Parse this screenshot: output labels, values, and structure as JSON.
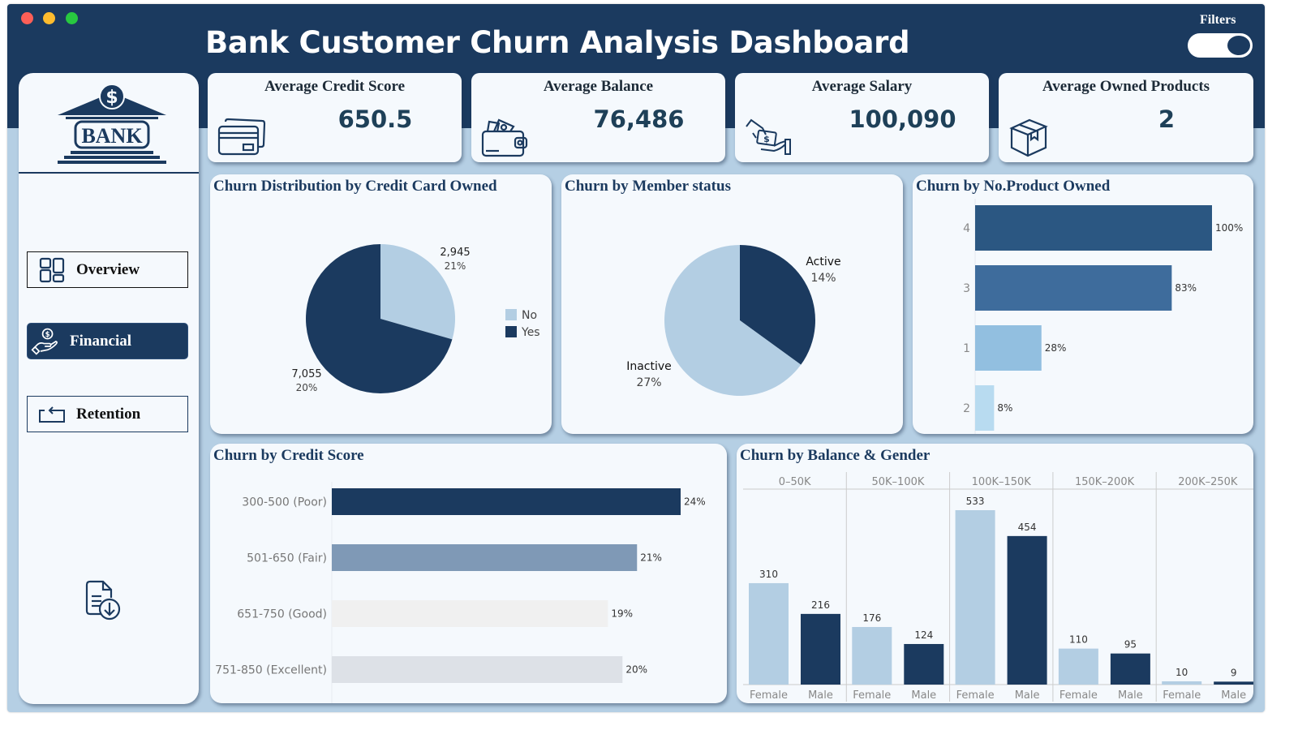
{
  "window": {
    "title": "Bank Customer Churn Analysis Dashboard",
    "filters_label": "Filters",
    "filters_toggle_on": true
  },
  "colors": {
    "header": "#1b3a5f",
    "background": "#b5cfe4",
    "card": "#f5f9fd",
    "dark_blue": "#1b3a5f",
    "light_blue": "#b3cee3"
  },
  "sidebar": {
    "logo_text": "BANK",
    "logo_icon": "bank-building-icon",
    "nav": [
      {
        "label": "Overview",
        "icon": "layout-grid-icon",
        "active": false
      },
      {
        "label": "Financial",
        "icon": "hand-dollar-icon",
        "active": true
      },
      {
        "label": "Retention",
        "icon": "return-arrow-icon",
        "active": false
      }
    ],
    "download_icon": "file-download-icon"
  },
  "kpis": [
    {
      "title": "Average Credit Score",
      "value": "650.5",
      "icon": "credit-card-icon"
    },
    {
      "title": "Average Balance",
      "value": "76,486",
      "icon": "wallet-icon"
    },
    {
      "title": "Average Salary",
      "value": "100,090",
      "icon": "salary-hand-icon"
    },
    {
      "title": "Average Owned Products",
      "value": "2",
      "icon": "package-box-icon"
    }
  ],
  "chart_data": [
    {
      "id": "credit_card",
      "type": "pie",
      "title": "Churn Distribution by Credit Card Owned",
      "slices": [
        {
          "label": "No",
          "count": 2945,
          "count_label": "2,945",
          "churn_rate": "21%",
          "color": "#b3cee3"
        },
        {
          "label": "Yes",
          "count": 7055,
          "count_label": "7,055",
          "churn_rate": "20%",
          "color": "#1b3a5f"
        }
      ],
      "legend": [
        "No",
        "Yes"
      ],
      "legend_position": "right"
    },
    {
      "id": "member_status",
      "type": "pie",
      "title": "Churn by Member status",
      "slices": [
        {
          "label": "Active",
          "share": 0.35,
          "churn_rate": "14%",
          "color": "#1b3a5f"
        },
        {
          "label": "Inactive",
          "share": 0.65,
          "churn_rate": "27%",
          "color": "#b3cee3"
        }
      ]
    },
    {
      "id": "products",
      "type": "bar",
      "orientation": "horizontal",
      "title": "Churn by No.Product Owned",
      "categories": [
        "4",
        "3",
        "1",
        "2"
      ],
      "values": [
        100,
        83,
        28,
        8
      ],
      "value_labels": [
        "100%",
        "83%",
        "28%",
        "8%"
      ],
      "colors": [
        "#2b5782",
        "#3e6c9c",
        "#92bfe0",
        "#b8dbf0"
      ],
      "xlim": [
        0,
        100
      ]
    },
    {
      "id": "credit_score",
      "type": "bar",
      "orientation": "horizontal",
      "title": "Churn by Credit Score",
      "categories": [
        "300-500 (Poor)",
        "501-650 (Fair)",
        "651-750 (Good)",
        "751-850 (Excellent)"
      ],
      "values": [
        24,
        21,
        19,
        20
      ],
      "value_labels": [
        "24%",
        "21%",
        "19%",
        "20%"
      ],
      "colors": [
        "#1b3a5f",
        "#7f99b6",
        "#f0f0f0",
        "#dde1e7"
      ],
      "xlim": [
        0,
        24
      ]
    },
    {
      "id": "balance_gender",
      "type": "bar",
      "title": "Churn by Balance & Gender",
      "groups": [
        "0–50K",
        "50K–100K",
        "100K–150K",
        "150K–200K",
        "200K–250K"
      ],
      "categories": [
        "Female",
        "Male"
      ],
      "series": [
        {
          "name": "Female",
          "values": [
            310,
            176,
            533,
            110,
            10
          ],
          "color": "#b3cee3"
        },
        {
          "name": "Male",
          "values": [
            216,
            124,
            454,
            95,
            9
          ],
          "color": "#1b3a5f"
        }
      ],
      "ylim": [
        0,
        533
      ]
    }
  ]
}
